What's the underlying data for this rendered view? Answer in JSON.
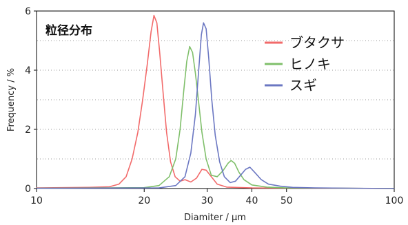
{
  "chart_data": {
    "type": "line",
    "title": "粒径分布",
    "xlabel": "Diamiter / μm",
    "ylabel": "Frequency / %",
    "x_scale": "log",
    "xlim": [
      10,
      100
    ],
    "ylim": [
      0,
      6
    ],
    "x_ticks": [
      {
        "value": 10,
        "label": "10"
      },
      {
        "value": 20,
        "label": "20"
      },
      {
        "value": 30,
        "label": "30"
      },
      {
        "value": 40,
        "label": "40"
      },
      {
        "value": 50,
        "label": "50"
      },
      {
        "value": 100,
        "label": "100"
      }
    ],
    "y_ticks": [
      {
        "value": 0,
        "label": "0"
      },
      {
        "value": 2,
        "label": "2"
      },
      {
        "value": 4,
        "label": "4"
      },
      {
        "value": 6,
        "label": "6"
      }
    ],
    "grid": {
      "horizontal": true,
      "style": "dotted",
      "values": [
        1,
        2,
        3,
        4,
        5
      ]
    },
    "legend": {
      "position": "top-right"
    },
    "series": [
      {
        "name": "ブタクサ",
        "color": "#f26a6a",
        "points": [
          [
            10,
            0.02
          ],
          [
            14,
            0.04
          ],
          [
            16,
            0.06
          ],
          [
            17,
            0.15
          ],
          [
            17.8,
            0.4
          ],
          [
            18.5,
            1.0
          ],
          [
            19.2,
            1.9
          ],
          [
            19.8,
            3.0
          ],
          [
            20.4,
            4.2
          ],
          [
            20.9,
            5.3
          ],
          [
            21.3,
            5.85
          ],
          [
            21.7,
            5.6
          ],
          [
            22.1,
            4.6
          ],
          [
            22.6,
            3.2
          ],
          [
            23.1,
            1.9
          ],
          [
            23.7,
            0.9
          ],
          [
            24.4,
            0.4
          ],
          [
            25.2,
            0.25
          ],
          [
            26.0,
            0.3
          ],
          [
            27.0,
            0.22
          ],
          [
            28.0,
            0.35
          ],
          [
            29.0,
            0.65
          ],
          [
            29.8,
            0.62
          ],
          [
            30.8,
            0.4
          ],
          [
            32.0,
            0.15
          ],
          [
            34.0,
            0.05
          ],
          [
            40.0,
            0.02
          ],
          [
            100,
            0.0
          ]
        ]
      },
      {
        "name": "ヒノキ",
        "color": "#7fbf6a",
        "points": [
          [
            10,
            0.01
          ],
          [
            20,
            0.03
          ],
          [
            22,
            0.1
          ],
          [
            23.5,
            0.4
          ],
          [
            24.5,
            1.0
          ],
          [
            25.2,
            2.0
          ],
          [
            25.8,
            3.3
          ],
          [
            26.3,
            4.3
          ],
          [
            26.8,
            4.8
          ],
          [
            27.3,
            4.6
          ],
          [
            27.8,
            3.9
          ],
          [
            28.4,
            2.9
          ],
          [
            29.0,
            1.9
          ],
          [
            29.8,
            1.0
          ],
          [
            30.8,
            0.45
          ],
          [
            32.0,
            0.4
          ],
          [
            33.2,
            0.6
          ],
          [
            34.3,
            0.85
          ],
          [
            35.0,
            0.95
          ],
          [
            35.8,
            0.85
          ],
          [
            36.8,
            0.55
          ],
          [
            38.0,
            0.3
          ],
          [
            40.0,
            0.12
          ],
          [
            44.0,
            0.05
          ],
          [
            50.0,
            0.02
          ],
          [
            100,
            0.0
          ]
        ]
      },
      {
        "name": "スギ",
        "color": "#6b77c2",
        "points": [
          [
            10,
            0.01
          ],
          [
            22,
            0.02
          ],
          [
            24.5,
            0.1
          ],
          [
            26.0,
            0.4
          ],
          [
            27.0,
            1.2
          ],
          [
            27.8,
            2.5
          ],
          [
            28.4,
            4.0
          ],
          [
            28.9,
            5.2
          ],
          [
            29.3,
            5.6
          ],
          [
            29.8,
            5.4
          ],
          [
            30.3,
            4.4
          ],
          [
            30.9,
            3.0
          ],
          [
            31.6,
            1.8
          ],
          [
            32.5,
            0.9
          ],
          [
            33.5,
            0.4
          ],
          [
            34.8,
            0.2
          ],
          [
            36.0,
            0.25
          ],
          [
            37.2,
            0.45
          ],
          [
            38.4,
            0.65
          ],
          [
            39.5,
            0.72
          ],
          [
            40.7,
            0.55
          ],
          [
            42.5,
            0.3
          ],
          [
            44.5,
            0.15
          ],
          [
            48.0,
            0.08
          ],
          [
            52.0,
            0.04
          ],
          [
            60.0,
            0.02
          ],
          [
            100,
            0.0
          ]
        ]
      }
    ]
  }
}
